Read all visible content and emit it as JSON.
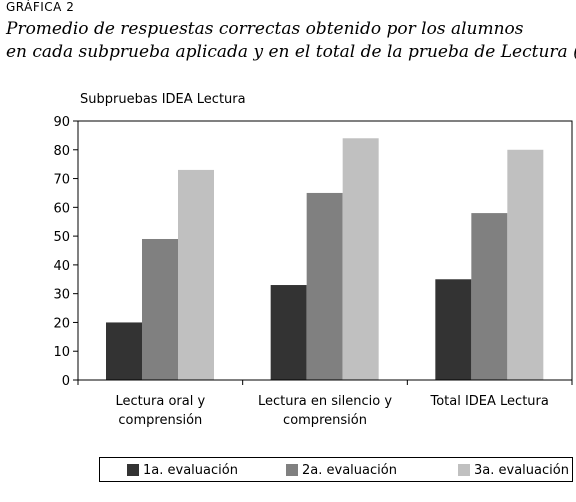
{
  "figure": {
    "label": "GRÁFICA 2",
    "caption_line1": "Promedio de respuestas correctas obtenido por los alumnos",
    "caption_line2": "en cada subprueba aplicada y en el total de la prueba de Lectura (%)"
  },
  "chart_data": {
    "type": "bar",
    "title": "Subpruebas IDEA Lectura",
    "xlabel": "",
    "ylabel": "",
    "ylim": [
      0,
      90
    ],
    "yticks": [
      0,
      10,
      20,
      30,
      40,
      50,
      60,
      70,
      80,
      90
    ],
    "grid": false,
    "legend_position": "bottom",
    "categories": [
      [
        "Lectura oral y",
        "comprensión"
      ],
      [
        "Lectura en silencio y",
        "comprensión"
      ],
      [
        "Total IDEA Lectura"
      ]
    ],
    "series": [
      {
        "name": "1a. evaluación",
        "color": "#333333",
        "values": [
          20,
          33,
          35
        ]
      },
      {
        "name": "2a. evaluación",
        "color": "#808080",
        "values": [
          49,
          65,
          58
        ]
      },
      {
        "name": "3a. evaluación",
        "color": "#c0c0c0",
        "values": [
          73,
          84,
          80
        ]
      }
    ]
  }
}
